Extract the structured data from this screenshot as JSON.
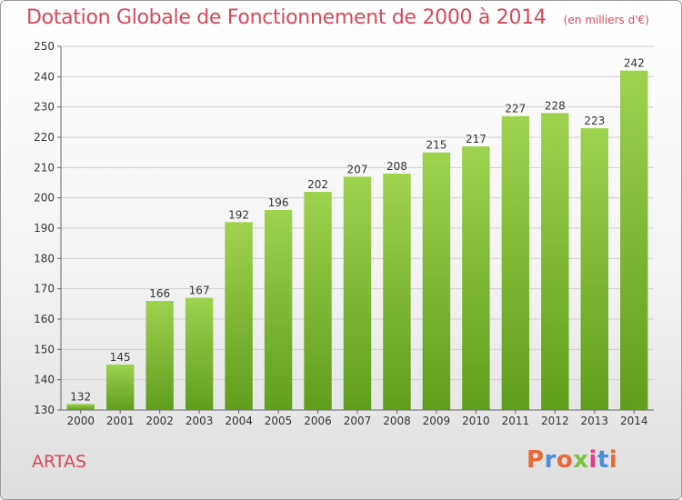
{
  "chart_data": {
    "type": "bar",
    "title": "Dotation Globale de Fonctionnement de 2000 à 2014",
    "subtitle": "(en milliers d'€)",
    "categories": [
      "2000",
      "2001",
      "2002",
      "2003",
      "2004",
      "2005",
      "2006",
      "2007",
      "2008",
      "2009",
      "2010",
      "2011",
      "2012",
      "2013",
      "2014"
    ],
    "values": [
      132,
      145,
      166,
      167,
      192,
      196,
      202,
      207,
      208,
      215,
      217,
      227,
      228,
      223,
      242
    ],
    "ylim": [
      130,
      250
    ],
    "yticks": [
      130,
      140,
      150,
      160,
      170,
      180,
      190,
      200,
      210,
      220,
      230,
      240,
      250
    ],
    "grid": true,
    "bar_color": "#77b82e"
  },
  "footer": {
    "place": "ARTAS",
    "logo": "Proxiti"
  },
  "colors": {
    "title": "#d4495a",
    "logo_letters": [
      "#e8683a",
      "#4a8fd4",
      "#e8683a",
      "#7cc242",
      "#e83a8a",
      "#4a8fd4",
      "#e8683a"
    ]
  }
}
